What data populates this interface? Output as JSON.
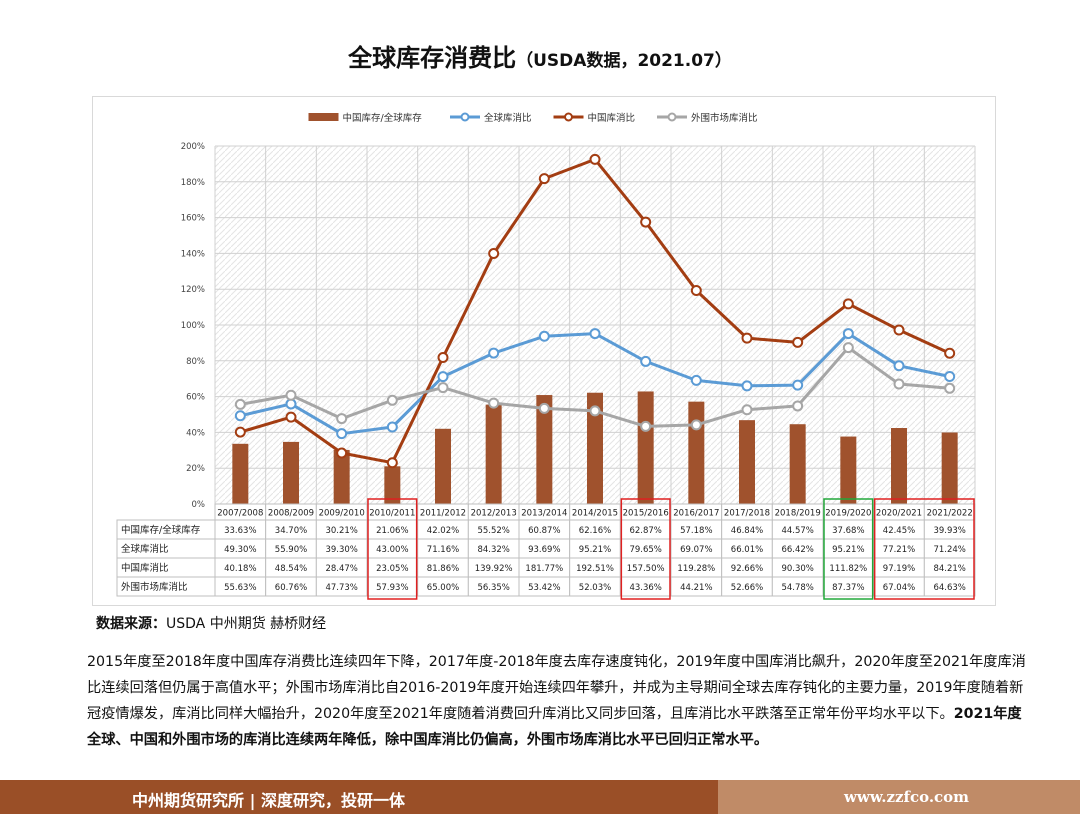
{
  "title": {
    "main": "全球库存消费比",
    "sub": "（USDA数据，2021.07）"
  },
  "chart_data": {
    "type": "bar+line",
    "categories": [
      "2007/2008",
      "2008/2009",
      "2009/2010",
      "2010/2011",
      "2011/2012",
      "2012/2013",
      "2013/2014",
      "2014/2015",
      "2015/2016",
      "2016/2017",
      "2017/2018",
      "2018/2019",
      "2019/2020",
      "2020/2021",
      "2021/2022"
    ],
    "y_ticks": [
      "200%",
      "180%",
      "160%",
      "140%",
      "120%",
      "100%",
      "80%",
      "60%",
      "40%",
      "20%",
      "0%"
    ],
    "ylim": [
      0,
      200
    ],
    "legend_position": "top",
    "series": [
      {
        "name": "中国库存/全球库存",
        "kind": "bar",
        "color": "#a0522d",
        "values": [
          33.63,
          34.7,
          30.21,
          21.06,
          42.02,
          55.52,
          60.87,
          62.16,
          62.87,
          57.18,
          46.84,
          44.57,
          37.68,
          42.45,
          39.93
        ],
        "labels": [
          "33.63%",
          "34.70%",
          "30.21%",
          "21.06%",
          "42.02%",
          "55.52%",
          "60.87%",
          "62.16%",
          "62.87%",
          "57.18%",
          "46.84%",
          "44.57%",
          "37.68%",
          "42.45%",
          "39.93%"
        ]
      },
      {
        "name": "全球库消比",
        "kind": "line",
        "color": "#5b9bd5",
        "values": [
          49.3,
          55.9,
          39.3,
          43.0,
          71.16,
          84.32,
          93.69,
          95.21,
          79.65,
          69.07,
          66.01,
          66.42,
          95.21,
          77.21,
          71.24
        ],
        "labels": [
          "49.30%",
          "55.90%",
          "39.30%",
          "43.00%",
          "71.16%",
          "84.32%",
          "93.69%",
          "95.21%",
          "79.65%",
          "69.07%",
          "66.01%",
          "66.42%",
          "95.21%",
          "77.21%",
          "71.24%"
        ]
      },
      {
        "name": "中国库消比",
        "kind": "line",
        "color": "#a33d12",
        "values": [
          40.18,
          48.54,
          28.47,
          23.05,
          81.86,
          139.92,
          181.77,
          192.51,
          157.5,
          119.28,
          92.66,
          90.3,
          111.82,
          97.19,
          84.21
        ],
        "labels": [
          "40.18%",
          "48.54%",
          "28.47%",
          "23.05%",
          "81.86%",
          "139.92%",
          "181.77%",
          "192.51%",
          "157.50%",
          "119.28%",
          "92.66%",
          "90.30%",
          "111.82%",
          "97.19%",
          "84.21%"
        ]
      },
      {
        "name": "外围市场库消比",
        "kind": "line",
        "color": "#a6a6a6",
        "values": [
          55.63,
          60.76,
          47.73,
          57.93,
          65.0,
          56.35,
          53.42,
          52.03,
          43.36,
          44.21,
          52.66,
          54.78,
          87.37,
          67.04,
          64.63
        ],
        "labels": [
          "55.63%",
          "60.76%",
          "47.73%",
          "57.93%",
          "65.00%",
          "56.35%",
          "53.42%",
          "52.03%",
          "43.36%",
          "44.21%",
          "52.66%",
          "54.78%",
          "87.37%",
          "67.04%",
          "64.63%"
        ]
      }
    ]
  },
  "source": {
    "label": "数据来源：",
    "text": "USDA  中州期货  赫桥财经"
  },
  "paragraph": {
    "normal": "2015年度至2018年度中国库存消费比连续四年下降，2017年度-2018年度去库存速度钝化，2019年度中国库消比飙升，2020年度至2021年度库消比连续回落但仍属于高值水平；外围市场库消比自2016-2019年度开始连续四年攀升，并成为主导期间全球去库存钝化的主要力量，2019年度随着新冠疫情爆发，库消比同样大幅抬升，2020年度至2021年度随着消费回升库消比又同步回落，且库消比水平跌落至正常年份平均水平以下。",
    "bold": "2021年度全球、中国和外围市场的库消比连续两年降低，除中国库消比仍偏高，外围市场库消比水平已回归正常水平。"
  },
  "footer": {
    "left": "中州期货研究所 | 深度研究，投研一体",
    "right": "www.zzfco.com"
  }
}
